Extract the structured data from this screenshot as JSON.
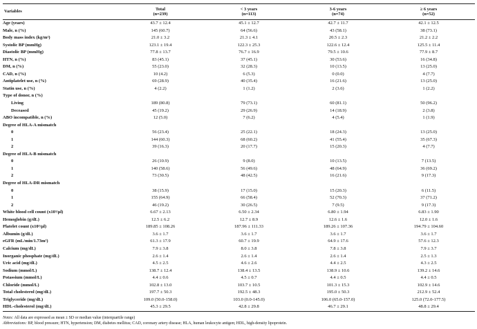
{
  "headers": {
    "variables": "Variables",
    "total": "Total",
    "total_n": "(n=239)",
    "g1": "< 3 years",
    "g1_n": "(n=113)",
    "g2": "3-6 years",
    "g2_n": "(n=74)",
    "g3": "≥ 6 years",
    "g3_n": "(n=52)"
  },
  "rows": [
    {
      "label": "Age (years)",
      "sub": false,
      "v": [
        "43.7 ± 12.4",
        "45.1 ± 12.7",
        "42.7 ± 11.7",
        "42.1 ± 12.5"
      ]
    },
    {
      "label": "Male, n (%)",
      "sub": false,
      "v": [
        "145 (60.7)",
        "64 (56.6)",
        "43 (58.1)",
        "38 (73.1)"
      ]
    },
    {
      "label": "Body mass index (kg/m²)",
      "sub": false,
      "v": [
        "21.0 ± 3.2",
        "21.3 ± 4.1",
        "20.5 ± 2.3",
        "21.2 ± 2.2"
      ]
    },
    {
      "label": "Systolic BP (mmHg)",
      "sub": false,
      "v": [
        "123.1 ± 19.4",
        "122.3 ± 25.3",
        "122.6 ± 12.4",
        "125.5 ± 11.4"
      ]
    },
    {
      "label": "Diastolic BP (mmHg)",
      "sub": false,
      "v": [
        "77.8 ± 13.7",
        "76.7 ± 16.9",
        "79.5 ± 10.6",
        "77.9 ± 8.7"
      ]
    },
    {
      "label": "HTN, n (%)",
      "sub": false,
      "v": [
        "83 (45.1)",
        "37 (45.1)",
        "30 (53.6)",
        "16 (34.8)"
      ]
    },
    {
      "label": "DM, n (%)",
      "sub": false,
      "v": [
        "55 (23.0)",
        "32 (28.3)",
        "10 (13.5)",
        "13 (25.0)"
      ]
    },
    {
      "label": "CAD, n (%)",
      "sub": false,
      "v": [
        "10 (4.2)",
        "6 (5.3)",
        "0 (0.0)",
        "4 (7.7)"
      ]
    },
    {
      "label": "Antiplatelet use, n (%)",
      "sub": false,
      "v": [
        "69 (28.9)",
        "40 (35.4)",
        "16 (21.6)",
        "13 (25.0)"
      ]
    },
    {
      "label": "Statin use, n (%)",
      "sub": false,
      "v": [
        "4 (2.2)",
        "1 (1.2)",
        "2 (3.6)",
        "1 (2.2)"
      ]
    },
    {
      "label": "Type of donor, n (%)",
      "sub": false,
      "v": [
        "",
        "",
        "",
        ""
      ]
    },
    {
      "label": "Living",
      "sub": true,
      "v": [
        "189 (80.8)",
        "79 (73.1)",
        "60 (81.1)",
        "50 (96.2)"
      ]
    },
    {
      "label": "Deceased",
      "sub": true,
      "v": [
        "45 (19.2)",
        "29 (26.9)",
        "14 (18.9)",
        "2 (3.8)"
      ]
    },
    {
      "label": "ABO incompatible, n (%)",
      "sub": false,
      "v": [
        "12 (5.0)",
        "7 (6.2)",
        "4 (5.4)",
        "1 (1.9)"
      ]
    },
    {
      "label": "Degree of HLA-A mismatch",
      "sub": false,
      "v": [
        "",
        "",
        "",
        ""
      ]
    },
    {
      "label": "0",
      "sub": true,
      "v": [
        "56 (23.4)",
        "25 (22.1)",
        "18 (24.3)",
        "13 (25.0)"
      ]
    },
    {
      "label": "1",
      "sub": true,
      "v": [
        "144 (60.3)",
        "68 (60.2)",
        "41 (55.4)",
        "35 (67.3)"
      ]
    },
    {
      "label": "2",
      "sub": true,
      "v": [
        "39 (16.3)",
        "20 (17.7)",
        "15 (20.3)",
        "4 (7.7)"
      ]
    },
    {
      "label": "Degree of HLA-B mismatch",
      "sub": false,
      "v": [
        "",
        "",
        "",
        ""
      ]
    },
    {
      "label": "0",
      "sub": true,
      "v": [
        "26 (10.9)",
        "9 (8.0)",
        "10 (13.5)",
        "7 (13.5)"
      ]
    },
    {
      "label": "1",
      "sub": true,
      "v": [
        "140 (58.6)",
        "56 (49.6)",
        "48 (64.9)",
        "36 (69.2)"
      ]
    },
    {
      "label": "2",
      "sub": true,
      "v": [
        "73 (30.5)",
        "48 (42.5)",
        "16 (21.6)",
        "9 (17.3)"
      ]
    },
    {
      "label": "Degree of HLA-DR mismatch",
      "sub": false,
      "v": [
        "",
        "",
        "",
        ""
      ]
    },
    {
      "label": "0",
      "sub": true,
      "v": [
        "38 (15.9)",
        "17 (15.0)",
        "15 (20.3)",
        "6 (11.5)"
      ]
    },
    {
      "label": "1",
      "sub": true,
      "v": [
        "155 (64.9)",
        "66 (58.4)",
        "52 (70.3)",
        "37 (71.2)"
      ]
    },
    {
      "label": "2",
      "sub": true,
      "v": [
        "46 (19.2)",
        "30 (26.5)",
        "7 (9.5)",
        "9 (17.3)"
      ]
    },
    {
      "label": "White blood cell count (x10³/µl)",
      "sub": false,
      "v": [
        "6.67 ± 2.13",
        "6.50 ± 2.34",
        "6.80 ± 1.94",
        "6.83 ± 1.90"
      ]
    },
    {
      "label": "Hemoglobin (g/dL)",
      "sub": false,
      "v": [
        "12.5 ± 6.2",
        "12.7 ± 8.9",
        "12.6 ± 1.6",
        "12.0 ± 1.6"
      ]
    },
    {
      "label": "Platelet count (x10³/µl)",
      "sub": false,
      "v": [
        "189.85 ± 108.26",
        "187.96 ± 111.33",
        "189.26 ± 107.36",
        "194.79 ± 104.60"
      ]
    },
    {
      "label": "Albumin (g/dL)",
      "sub": false,
      "v": [
        "3.6 ± 1.7",
        "3.6 ± 1.7",
        "3.6 ± 1.7",
        "3.6 ± 1.7"
      ]
    },
    {
      "label": "eGFR (mL/min/1.73m²)",
      "sub": false,
      "v": [
        "61.3 ± 17.9",
        "60.7 ± 19.9",
        "64.9 ± 17.6",
        "57.6 ± 12.3"
      ]
    },
    {
      "label": "Calcium (mg/dL)",
      "sub": false,
      "v": [
        "7.9 ± 3.8",
        "8.0 ± 3.8",
        "7.8 ± 3.8",
        "7.9 ± 3.7"
      ]
    },
    {
      "label": "Inorganic phosphate (mg/dL)",
      "sub": false,
      "v": [
        "2.6 ± 1.4",
        "2.6 ± 1.4",
        "2.6 ± 1.4",
        "2.5 ± 1.3"
      ]
    },
    {
      "label": "Uric acid (mg/dL)",
      "sub": false,
      "v": [
        "4.5 ± 2.5",
        "4.6 ± 2.6",
        "4.4 ± 2.5",
        "4.3 ± 2.5"
      ]
    },
    {
      "label": "Sodium (mmol/L)",
      "sub": false,
      "v": [
        "138.7 ± 12.4",
        "138.4 ± 13.5",
        "138.9 ± 10.6",
        "139.2 ± 14.6"
      ]
    },
    {
      "label": "Potassium (mmol/L)",
      "sub": false,
      "v": [
        "4.4 ± 0.6",
        "4.5 ± 0.7",
        "4.4 ± 0.5",
        "4.4 ± 0.5"
      ]
    },
    {
      "label": "Chloride (mmol/L)",
      "sub": false,
      "v": [
        "102.8 ± 13.0",
        "103.7 ± 10.5",
        "101.3 ± 15.3",
        "102.9 ± 14.6"
      ]
    },
    {
      "label": "Total cholesterol (mg/dL)",
      "sub": false,
      "v": [
        "197.7 ± 50.3",
        "192.5 ± 48.3",
        "195.0 ± 50.3",
        "212.9 ± 52.4"
      ]
    },
    {
      "label": "Triglyceride (mg/dL)",
      "sub": false,
      "v": [
        "109.0 (50.0-158.0)",
        "103.0 (0.0-145.0)",
        "106.0 (65.0-157.0)",
        "125.0 (72.0-177.5)"
      ]
    },
    {
      "label": "HDL-cholesterol (mg/dL)",
      "sub": false,
      "v": [
        "45.3 ± 29.5",
        "42.8 ± 29.8",
        "46.7 ± 29.1",
        "48.8 ± 29.4"
      ]
    }
  ],
  "notes": {
    "notes_label": "Notes:",
    "notes_text": " All data are expressed as mean ± SD or median value (interquartile range)",
    "abbr_label": "Abbreviations:",
    "abbr_text": " BP, blood pressure; HTN, hypertension; DM, diabetes mellitus; CAD, coronary artery disease; HLA, human leukocyte antigen; HDL, high-density lipoprotein."
  }
}
